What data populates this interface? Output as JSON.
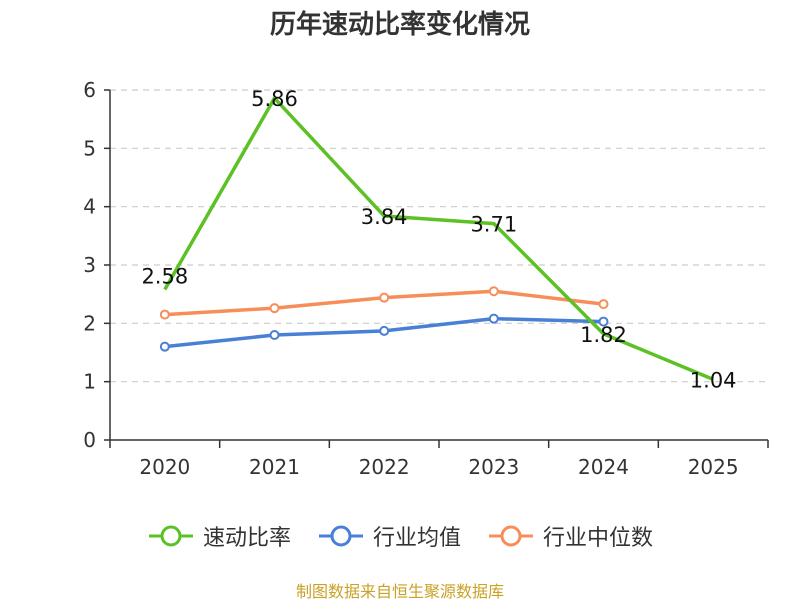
{
  "title": "历年速动比率变化情况",
  "source": "制图数据来自恒生聚源数据库",
  "colors": {
    "series_main": "#5cc124",
    "series_avg": "#4a7fd6",
    "series_median": "#f78e5a",
    "grid": "#cccccc",
    "axis": "#333333"
  },
  "chart_data": {
    "type": "line",
    "title": "历年速动比率变化情况",
    "categories": [
      "2020",
      "2021",
      "2022",
      "2023",
      "2024",
      "2025"
    ],
    "ylim": [
      0,
      6
    ],
    "yticks": [
      0,
      1,
      2,
      3,
      4,
      5,
      6
    ],
    "grid": true,
    "legend_position": "bottom",
    "series": [
      {
        "name": "速动比率",
        "color": "#5cc124",
        "values": [
          2.58,
          5.86,
          3.84,
          3.71,
          1.82,
          1.04
        ],
        "show_labels": true
      },
      {
        "name": "行业均值",
        "color": "#4a7fd6",
        "values": [
          1.6,
          1.8,
          1.87,
          2.08,
          2.03,
          null
        ],
        "show_labels": false
      },
      {
        "name": "行业中位数",
        "color": "#f78e5a",
        "values": [
          2.15,
          2.26,
          2.44,
          2.55,
          2.33,
          null
        ],
        "show_labels": false
      }
    ]
  },
  "legend": [
    {
      "label": "速动比率",
      "icon": "circle-line-icon",
      "color": "#5cc124"
    },
    {
      "label": "行业均值",
      "icon": "circle-line-icon",
      "color": "#4a7fd6"
    },
    {
      "label": "行业中位数",
      "icon": "circle-line-icon",
      "color": "#f78e5a"
    }
  ]
}
